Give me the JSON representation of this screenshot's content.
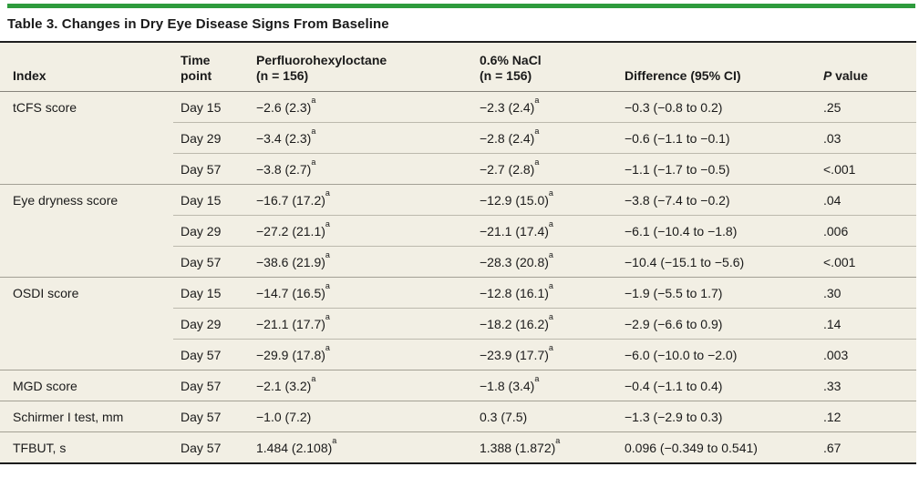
{
  "colors": {
    "accent_green": "#2e9b3d",
    "table_background": "#f2efe4",
    "rule_dark": "#1f1f1f",
    "group_separator": "#a3a094",
    "sub_separator": "#bcb9ad",
    "header_underline": "#87847b"
  },
  "title": "Table 3. Changes in Dry Eye Disease Signs From Baseline",
  "table": {
    "headers": {
      "index": "Index",
      "time_line1": "Time",
      "time_line2": "point",
      "drug_line1": "Perfluorohexyloctane",
      "drug_line2": "(n = 156)",
      "nacl_line1": "0.6% NaCl",
      "nacl_line2": "(n = 156)",
      "diff": "Difference (95% CI)",
      "p_italic": "P",
      "p_rest": "value"
    },
    "footnote_marker": "a",
    "rows": [
      {
        "group_start": true,
        "index": "tCFS score",
        "time": "Day 15",
        "drug": "−2.6 (2.3)",
        "drug_sup": "a",
        "nacl": "−2.3 (2.4)",
        "nacl_sup": "a",
        "diff": "−0.3 (−0.8 to 0.2)",
        "p": ".25"
      },
      {
        "group_start": false,
        "index": "",
        "time": "Day 29",
        "drug": "−3.4 (2.3)",
        "drug_sup": "a",
        "nacl": "−2.8 (2.4)",
        "nacl_sup": "a",
        "diff": "−0.6 (−1.1 to −0.1)",
        "p": ".03"
      },
      {
        "group_start": false,
        "index": "",
        "time": "Day 57",
        "drug": "−3.8 (2.7)",
        "drug_sup": "a",
        "nacl": "−2.7 (2.8)",
        "nacl_sup": "a",
        "diff": "−1.1 (−1.7 to −0.5)",
        "p": "<.001"
      },
      {
        "group_start": true,
        "index": "Eye dryness score",
        "time": "Day 15",
        "drug": "−16.7 (17.2)",
        "drug_sup": "a",
        "nacl": "−12.9 (15.0)",
        "nacl_sup": "a",
        "diff": "−3.8 (−7.4 to −0.2)",
        "p": ".04"
      },
      {
        "group_start": false,
        "index": "",
        "time": "Day 29",
        "drug": "−27.2 (21.1)",
        "drug_sup": "a",
        "nacl": "−21.1 (17.4)",
        "nacl_sup": "a",
        "diff": "−6.1 (−10.4 to −1.8)",
        "p": ".006"
      },
      {
        "group_start": false,
        "index": "",
        "time": "Day 57",
        "drug": "−38.6 (21.9)",
        "drug_sup": "a",
        "nacl": "−28.3 (20.8)",
        "nacl_sup": "a",
        "diff": "−10.4 (−15.1 to −5.6)",
        "p": "<.001"
      },
      {
        "group_start": true,
        "index": "OSDI score",
        "time": "Day 15",
        "drug": "−14.7 (16.5)",
        "drug_sup": "a",
        "nacl": "−12.8 (16.1)",
        "nacl_sup": "a",
        "diff": "−1.9 (−5.5 to 1.7)",
        "p": ".30"
      },
      {
        "group_start": false,
        "index": "",
        "time": "Day 29",
        "drug": "−21.1 (17.7)",
        "drug_sup": "a",
        "nacl": "−18.2 (16.2)",
        "nacl_sup": "a",
        "diff": "−2.9 (−6.6 to 0.9)",
        "p": ".14"
      },
      {
        "group_start": false,
        "index": "",
        "time": "Day 57",
        "drug": "−29.9 (17.8)",
        "drug_sup": "a",
        "nacl": "−23.9 (17.7)",
        "nacl_sup": "a",
        "diff": "−6.0 (−10.0 to −2.0)",
        "p": ".003"
      },
      {
        "group_start": true,
        "index": "MGD score",
        "time": "Day 57",
        "drug": "−2.1 (3.2)",
        "drug_sup": "a",
        "nacl": "−1.8 (3.4)",
        "nacl_sup": "a",
        "diff": "−0.4 (−1.1 to 0.4)",
        "p": ".33"
      },
      {
        "group_start": true,
        "index": "Schirmer I test, mm",
        "time": "Day 57",
        "drug": "−1.0 (7.2)",
        "drug_sup": "",
        "nacl": "0.3 (7.5)",
        "nacl_sup": "",
        "diff": "−1.3 (−2.9 to 0.3)",
        "p": ".12"
      },
      {
        "group_start": true,
        "index": "TFBUT, s",
        "time": "Day 57",
        "drug": "1.484 (2.108)",
        "drug_sup": "a",
        "nacl": "1.388 (1.872)",
        "nacl_sup": "a",
        "diff": "0.096 (−0.349 to 0.541)",
        "p": ".67"
      }
    ]
  }
}
